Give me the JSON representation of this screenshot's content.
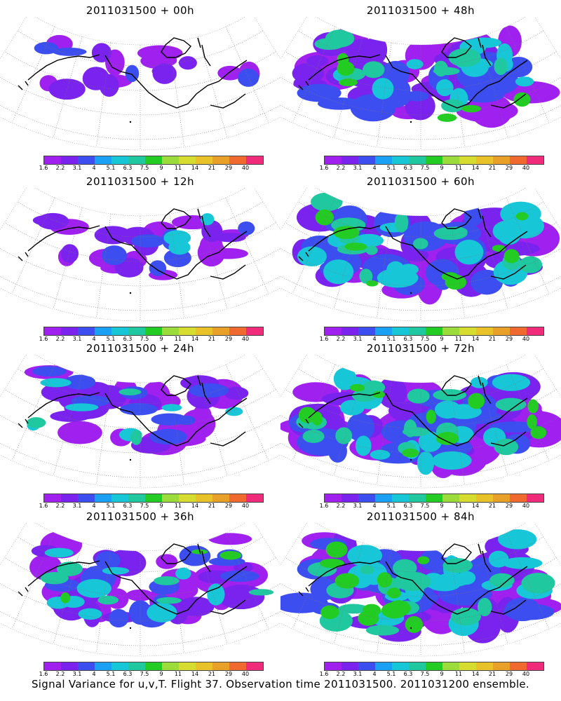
{
  "panels": [
    {
      "title": "2011031500 + 00h",
      "coverage": 0.18
    },
    {
      "title": "2011031500 + 12h",
      "coverage": 0.28
    },
    {
      "title": "2011031500 + 24h",
      "coverage": 0.4
    },
    {
      "title": "2011031500 + 36h",
      "coverage": 0.55
    },
    {
      "title": "2011031500 + 48h",
      "coverage": 0.7
    },
    {
      "title": "2011031500 + 60h",
      "coverage": 0.82
    },
    {
      "title": "2011031500 + 72h",
      "coverage": 0.9
    },
    {
      "title": "2011031500 + 84h",
      "coverage": 0.95
    }
  ],
  "colorbar": {
    "labels": [
      "1.6",
      "2.2",
      "3.1",
      "4",
      "5.1",
      "6.3",
      "7.5",
      "9",
      "11",
      "14",
      "21",
      "29",
      "40"
    ],
    "colors": [
      "#a020f0",
      "#7a22ee",
      "#3c4ef0",
      "#1aa0f5",
      "#18c7d7",
      "#20c8a0",
      "#22cc22",
      "#9cdc3a",
      "#d6dc30",
      "#e8c228",
      "#e8a028",
      "#f06a30",
      "#f02c7a"
    ]
  },
  "footer": "Signal Variance for u,v,T. Flight 37. Observation time 2011031500. 2011031200 ensemble."
}
